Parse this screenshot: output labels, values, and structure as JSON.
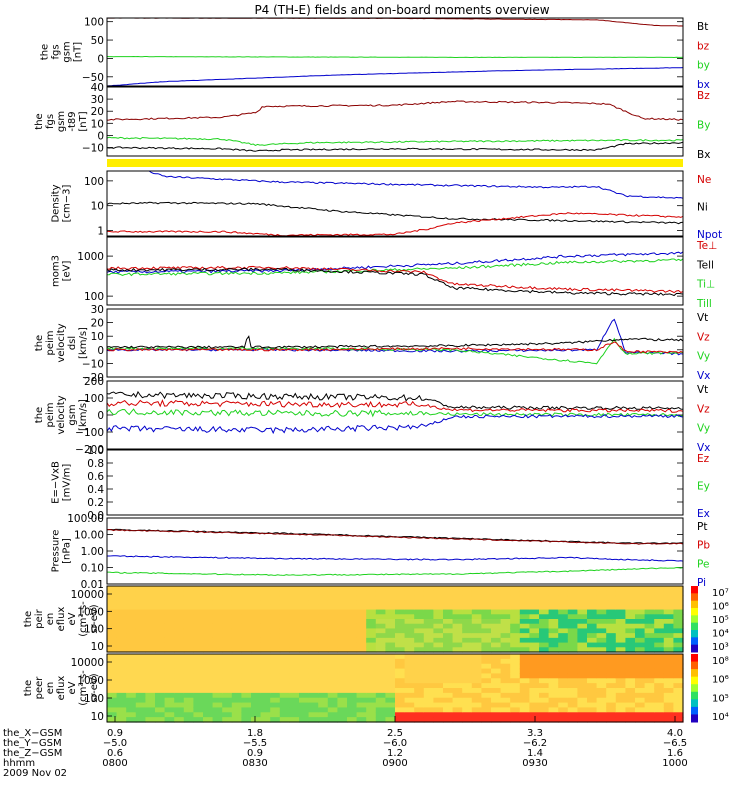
{
  "title": "P4 (TH-E) fields and on-board moments overview",
  "colors": {
    "black": "#000000",
    "red": "#d40000",
    "green": "#1ed21e",
    "blue": "#0000cc",
    "darkred": "#8b0000",
    "yellow": "#ffee00"
  },
  "chart_data": [
    {
      "type": "line",
      "ylabel": [
        "the",
        "fgs",
        "gsm",
        "[nT]"
      ],
      "yticks": [
        "100",
        "50",
        "0",
        "−50"
      ],
      "ytick_values": [
        100,
        50,
        0,
        -50
      ],
      "ylim": [
        -75,
        110
      ],
      "legend": [
        {
          "label": "Bt",
          "color": "black"
        },
        {
          "label": "bz",
          "color": "red"
        },
        {
          "label": "by",
          "color": "green"
        },
        {
          "label": "bx",
          "color": "blue"
        }
      ],
      "series": [
        {
          "name": "Bt",
          "color": "darkred",
          "x": [
            0,
            0.5,
            0.85,
            0.95,
            1
          ],
          "y": [
            110,
            109,
            105,
            90,
            88
          ]
        },
        {
          "name": "by",
          "color": "green",
          "x": [
            0,
            0.3,
            0.6,
            1
          ],
          "y": [
            5,
            4,
            3,
            3
          ]
        },
        {
          "name": "bx",
          "color": "blue",
          "x": [
            0,
            0.1,
            0.4,
            0.7,
            1
          ],
          "y": [
            -75,
            -63,
            -45,
            -33,
            -25
          ]
        }
      ]
    },
    {
      "type": "line",
      "ylabel": [
        "the",
        "fgs",
        "gsm",
        "-t89",
        "[nT]"
      ],
      "yticks": [
        "40",
        "30",
        "20",
        "10",
        "0",
        "−10"
      ],
      "ytick_values": [
        40,
        30,
        20,
        10,
        0,
        -10
      ],
      "ylim": [
        -17,
        40
      ],
      "legend": [
        {
          "label": "Bz",
          "color": "red"
        },
        {
          "label": "By",
          "color": "green"
        },
        {
          "label": "Bx",
          "color": "black"
        }
      ],
      "series": [
        {
          "name": "Bz",
          "color": "darkred",
          "x": [
            0,
            0.2,
            0.26,
            0.27,
            0.5,
            0.6,
            0.8,
            0.87,
            0.93,
            1
          ],
          "y": [
            13,
            15,
            19,
            24,
            25,
            28,
            27,
            26,
            14,
            13
          ]
        },
        {
          "name": "By",
          "color": "green",
          "x": [
            0,
            0.2,
            0.26,
            0.35,
            0.6,
            0.9,
            1
          ],
          "y": [
            -2,
            -3,
            -8,
            -6,
            -5,
            -4,
            -4
          ]
        },
        {
          "name": "Bx",
          "color": "black",
          "x": [
            0,
            0.2,
            0.26,
            0.3,
            0.5,
            0.85,
            0.9,
            1
          ],
          "y": [
            -10,
            -11,
            -13,
            -12,
            -11,
            -12,
            -7,
            -6
          ]
        }
      ]
    },
    {
      "type": "line",
      "log": true,
      "ylabel": [
        "Density",
        "[cm−3]"
      ],
      "yticks": [
        "100",
        "10",
        "1"
      ],
      "ytick_values": [
        100,
        10,
        1
      ],
      "ylim": [
        0.6,
        250
      ],
      "legend": [
        {
          "label": "Ne",
          "color": "red"
        },
        {
          "label": "Ni",
          "color": "black"
        },
        {
          "label": "Npot",
          "color": "blue"
        }
      ],
      "series": [
        {
          "name": "Npot",
          "color": "blue",
          "x": [
            0.07,
            0.1,
            0.3,
            0.6,
            0.78,
            0.85,
            0.9,
            1
          ],
          "y": [
            250,
            150,
            90,
            65,
            55,
            60,
            25,
            20
          ]
        },
        {
          "name": "Ni",
          "color": "black",
          "x": [
            0,
            0.1,
            0.26,
            0.4,
            0.6,
            0.8,
            1
          ],
          "y": [
            12,
            13,
            12,
            6,
            3,
            2.5,
            2
          ]
        },
        {
          "name": "Ne",
          "color": "red",
          "x": [
            0,
            0.2,
            0.3,
            0.5,
            0.56,
            0.6,
            0.75,
            0.8,
            1
          ],
          "y": [
            0.9,
            0.9,
            0.65,
            0.7,
            1.2,
            2,
            4,
            5,
            3.5
          ]
        }
      ]
    },
    {
      "type": "line",
      "log": true,
      "ylabel": [
        "mom3",
        "[eV]"
      ],
      "yticks": [
        "1000",
        "100"
      ],
      "ytick_values": [
        1000,
        100
      ],
      "ylim": [
        60,
        3000
      ],
      "legend": [
        {
          "label": "Te⊥",
          "color": "red"
        },
        {
          "label": "Tell",
          "color": "black"
        },
        {
          "label": "Ti⊥",
          "color": "green"
        },
        {
          "label": "Till",
          "color": "green"
        }
      ],
      "series": [
        {
          "name": "Ti⊥",
          "color": "blue",
          "x": [
            0,
            0.3,
            0.6,
            0.8,
            1
          ],
          "y": [
            400,
            430,
            650,
            1000,
            1200
          ]
        },
        {
          "name": "Till",
          "color": "green",
          "x": [
            0,
            0.3,
            0.6,
            0.8,
            1
          ],
          "y": [
            350,
            380,
            500,
            700,
            800
          ]
        },
        {
          "name": "Te⊥",
          "color": "red",
          "x": [
            0,
            0.3,
            0.55,
            0.6,
            0.8,
            1
          ],
          "y": [
            500,
            520,
            400,
            200,
            150,
            130
          ]
        },
        {
          "name": "Tell",
          "color": "black",
          "x": [
            0,
            0.3,
            0.55,
            0.6,
            0.8,
            1
          ],
          "y": [
            450,
            470,
            350,
            160,
            120,
            110
          ]
        }
      ]
    },
    {
      "type": "line",
      "ylabel": [
        "the",
        "peim",
        "velocity",
        "dsl",
        "[km/s]"
      ],
      "yticks": [
        "30",
        "20",
        "10",
        "0",
        "−10",
        "−20"
      ],
      "ytick_values": [
        30,
        20,
        10,
        0,
        -10,
        -20
      ],
      "ylim": [
        -20,
        30
      ],
      "legend": [
        {
          "label": "Vt",
          "color": "black"
        },
        {
          "label": "Vz",
          "color": "red"
        },
        {
          "label": "Vy",
          "color": "green"
        },
        {
          "label": "Vx",
          "color": "blue"
        }
      ],
      "series": [
        {
          "name": "Vx",
          "color": "blue",
          "x": [
            0,
            0.3,
            0.6,
            0.85,
            0.88,
            0.9,
            1
          ],
          "y": [
            0,
            0,
            -1,
            0,
            24,
            -2,
            -3
          ]
        },
        {
          "name": "Vy",
          "color": "green",
          "x": [
            0,
            0.3,
            0.6,
            0.85,
            0.88,
            0.9,
            1
          ],
          "y": [
            1,
            1,
            0,
            -10,
            8,
            -3,
            -2
          ]
        },
        {
          "name": "Vz",
          "color": "red",
          "x": [
            0,
            0.3,
            0.6,
            0.85,
            0.88,
            0.9,
            1
          ],
          "y": [
            0,
            0,
            1,
            0,
            6,
            -1,
            -2
          ]
        },
        {
          "name": "Vt",
          "color": "black",
          "x": [
            0,
            0.24,
            0.245,
            0.25,
            0.3,
            0.6,
            0.8,
            0.9,
            1
          ],
          "y": [
            2,
            2,
            13,
            2,
            2,
            3,
            5,
            8,
            7
          ]
        }
      ]
    },
    {
      "type": "line",
      "ylabel": [
        "the",
        "peim",
        "velocity",
        "gsm",
        "[km/s]"
      ],
      "yticks": [
        "200",
        "100",
        "0",
        "−100",
        "−200"
      ],
      "ytick_values": [
        200,
        100,
        0,
        -100,
        -200
      ],
      "ylim": [
        -200,
        200
      ],
      "legend": [
        {
          "label": "Vt",
          "color": "black"
        },
        {
          "label": "Vz",
          "color": "red"
        },
        {
          "label": "Vy",
          "color": "green"
        },
        {
          "label": "Vx",
          "color": "blue"
        }
      ],
      "series": [
        {
          "name": "Vt",
          "color": "black",
          "x": [
            0,
            0.3,
            0.55,
            0.6,
            1
          ],
          "y": [
            120,
            110,
            100,
            45,
            40
          ]
        },
        {
          "name": "Vz",
          "color": "red",
          "x": [
            0,
            0.3,
            0.55,
            0.6,
            1
          ],
          "y": [
            70,
            65,
            60,
            30,
            25
          ]
        },
        {
          "name": "Vy",
          "color": "green",
          "x": [
            0,
            0.3,
            0.55,
            0.6,
            1
          ],
          "y": [
            20,
            10,
            10,
            5,
            0
          ]
        },
        {
          "name": "Vx",
          "color": "blue",
          "x": [
            0,
            0.3,
            0.55,
            0.6,
            1
          ],
          "y": [
            -80,
            -90,
            -70,
            -10,
            -5
          ]
        }
      ]
    },
    {
      "type": "line",
      "ylabel": [
        "E=−VxB",
        "[mV/m]"
      ],
      "yticks": [
        "1.0",
        "0.8",
        "0.6",
        "0.4",
        "0.2",
        "0.0"
      ],
      "ytick_values": [
        1,
        0.8,
        0.6,
        0.4,
        0.2,
        0
      ],
      "ylim": [
        0,
        1
      ],
      "legend": [
        {
          "label": "Ez",
          "color": "red"
        },
        {
          "label": "Ey",
          "color": "green"
        },
        {
          "label": "Ex",
          "color": "blue"
        }
      ],
      "series": []
    },
    {
      "type": "line",
      "log": true,
      "ylabel": [
        "Pressure",
        "[nPa]"
      ],
      "yticks": [
        "100.00",
        "10.00",
        "1.00",
        "0.10",
        "0.01"
      ],
      "ytick_values": [
        100,
        10,
        1,
        0.1,
        0.01
      ],
      "ylim": [
        0.01,
        100
      ],
      "legend": [
        {
          "label": "Pt",
          "color": "black"
        },
        {
          "label": "Pb",
          "color": "red"
        },
        {
          "label": "Pe",
          "color": "green"
        },
        {
          "label": "Pi",
          "color": "blue"
        }
      ],
      "series": [
        {
          "name": "Pt",
          "color": "black",
          "x": [
            0,
            0.3,
            0.6,
            0.9,
            1
          ],
          "y": [
            20,
            12,
            6,
            3,
            3
          ]
        },
        {
          "name": "Pb",
          "color": "darkred",
          "x": [
            0,
            0.3,
            0.6,
            0.9,
            1
          ],
          "y": [
            19,
            11,
            5.5,
            2.8,
            2.8
          ]
        },
        {
          "name": "Pi",
          "color": "blue",
          "x": [
            0,
            0.3,
            0.6,
            0.8,
            0.9,
            1
          ],
          "y": [
            0.5,
            0.35,
            0.3,
            0.4,
            0.3,
            0.25
          ]
        },
        {
          "name": "Pe",
          "color": "green",
          "x": [
            0,
            0.3,
            0.6,
            0.8,
            1
          ],
          "y": [
            0.05,
            0.035,
            0.04,
            0.06,
            0.1
          ]
        }
      ]
    },
    {
      "type": "heatmap",
      "ylabel": [
        "the",
        "peir",
        "en",
        "eflux",
        "eV",
        "(cm²-s-",
        "sr-eV)"
      ],
      "yticks": [
        "10000",
        "1000",
        "100",
        "10"
      ],
      "colorbar_ticks": [
        "10⁷",
        "10⁶",
        "10⁵",
        "10⁴",
        "10³"
      ]
    },
    {
      "type": "heatmap",
      "ylabel": [
        "the",
        "peer",
        "en",
        "eflux",
        "eV",
        "(cm²-s-",
        "sr-eV)"
      ],
      "yticks": [
        "10000",
        "1000",
        "100",
        "10"
      ],
      "colorbar_ticks": [
        "10⁸",
        "10⁶",
        "10⁵",
        "10⁴"
      ]
    }
  ],
  "xaxis": {
    "row_labels": [
      "the_X−GSM",
      "the_Y−GSM",
      "the_Z−GSM",
      "hhmm"
    ],
    "footer": "2009 Nov 02",
    "ticks": [
      {
        "x": "0.9",
        "y": "−5.0",
        "z": "0.6",
        "t": "0800"
      },
      {
        "x": "1.8",
        "y": "−5.5",
        "z": "0.9",
        "t": "0830"
      },
      {
        "x": "2.5",
        "y": "−6.0",
        "z": "1.2",
        "t": "0900"
      },
      {
        "x": "3.3",
        "y": "−6.2",
        "z": "1.4",
        "t": "0930"
      },
      {
        "x": "4.0",
        "y": "−6.5",
        "z": "1.6",
        "t": "1000"
      }
    ]
  }
}
